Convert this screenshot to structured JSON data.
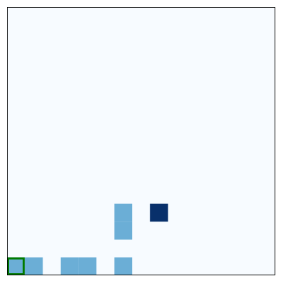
{
  "colors": {
    "page_background": "#ffffff",
    "board_background": "#f7fbff",
    "board_border": "#000000",
    "block": "#6baed6",
    "goal": "#08306b",
    "agent_outline": "#007a00"
  },
  "grid": {
    "columns": 15,
    "rows": 15
  },
  "cells": [
    {
      "type": "block",
      "col": 0,
      "row": 14
    },
    {
      "type": "block",
      "col": 1,
      "row": 14
    },
    {
      "type": "block",
      "col": 3,
      "row": 14
    },
    {
      "type": "block",
      "col": 4,
      "row": 14
    },
    {
      "type": "block",
      "col": 6,
      "row": 14
    },
    {
      "type": "block",
      "col": 6,
      "row": 11
    },
    {
      "type": "block",
      "col": 6,
      "row": 12
    },
    {
      "type": "goal",
      "col": 8,
      "row": 11
    }
  ],
  "agent": {
    "col": 0,
    "row": 14
  }
}
